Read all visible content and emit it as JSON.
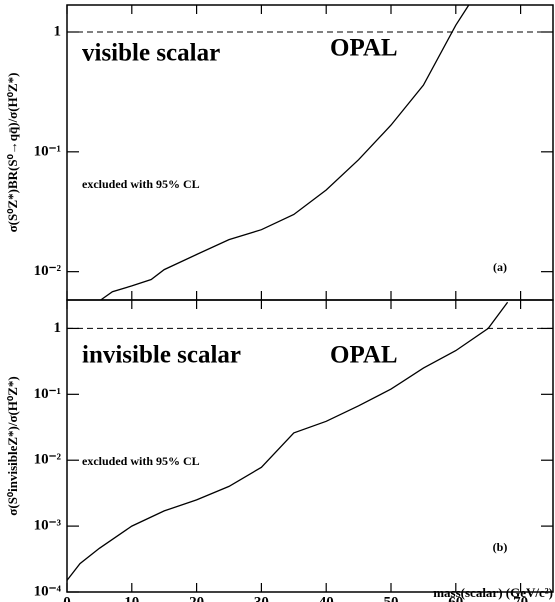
{
  "chart_data": [
    {
      "type": "line",
      "log_y": true,
      "labels": [
        "visible scalar",
        "OPAL",
        "excluded with 95% CL",
        "(a)"
      ],
      "ylabel": "σ(S⁰Z*)BR(S⁰→qq̄)/σ(H⁰Z*)",
      "x": [
        5.2,
        7,
        10,
        13,
        15,
        20,
        25,
        30,
        35,
        40,
        45,
        50,
        55,
        60,
        62
      ],
      "series": [
        {
          "color": "#000000",
          "values": [
            0.0058,
            0.0068,
            0.0076,
            0.0086,
            0.0104,
            0.0139,
            0.0185,
            0.0224,
            0.03,
            0.048,
            0.086,
            0.167,
            0.36,
            1.14,
            1.68
          ]
        }
      ],
      "reference_line": 1,
      "xlim": [
        0,
        75
      ],
      "xticks": [
        0,
        10,
        20,
        30,
        40,
        50,
        60,
        70
      ],
      "ylim": [
        0.0058,
        1.68
      ],
      "yticks": [
        {
          "value": 1,
          "label": "1"
        },
        {
          "value": 0.1,
          "label": "10⁻¹"
        },
        {
          "value": 0.01,
          "label": "10⁻²"
        }
      ]
    },
    {
      "type": "line",
      "log_y": true,
      "labels": [
        "invisible scalar",
        "OPAL",
        "excluded with 95% CL",
        "(b)"
      ],
      "ylabel": "σ(S⁰invisibleZ*)/σ(H⁰Z*)",
      "xlabel": "mass(scalar) (GeV/c²)",
      "x": [
        0,
        2,
        5,
        10,
        15,
        20,
        25,
        30,
        35,
        40,
        45,
        50,
        55,
        60,
        65,
        68
      ],
      "series": [
        {
          "color": "#000000",
          "values": [
            0.00015,
            0.00027,
            0.00046,
            0.001,
            0.0017,
            0.0025,
            0.004,
            0.0078,
            0.026,
            0.039,
            0.067,
            0.12,
            0.25,
            0.46,
            1.0,
            2.5
          ]
        }
      ],
      "reference_line": 1,
      "xlim": [
        0,
        75
      ],
      "xticks": [
        0,
        10,
        20,
        30,
        40,
        50,
        60,
        70
      ],
      "ylim": [
        0.0001,
        2.7
      ],
      "yticks": [
        {
          "value": 1,
          "label": "1"
        },
        {
          "value": 0.1,
          "label": "10⁻¹"
        },
        {
          "value": 0.01,
          "label": "10⁻²"
        },
        {
          "value": 0.001,
          "label": "10⁻³"
        },
        {
          "value": 0.0001,
          "label": "10⁻⁴"
        }
      ]
    }
  ]
}
